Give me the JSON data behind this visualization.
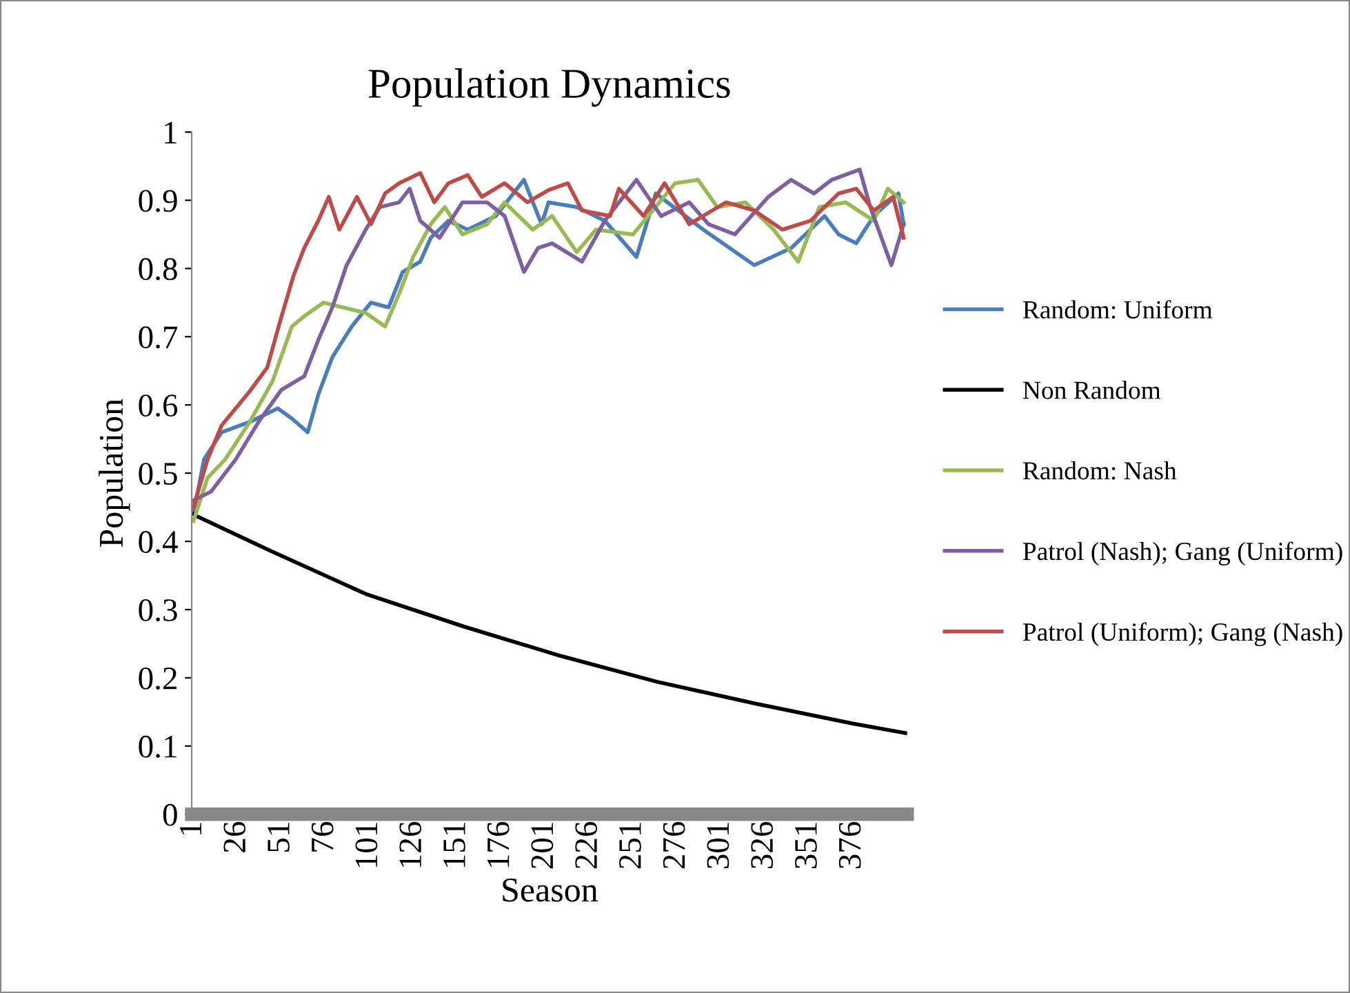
{
  "chart_data": {
    "type": "line",
    "title": "Population Dynamics",
    "xlabel": "Season",
    "ylabel": "Population",
    "xlim": [
      0,
      407
    ],
    "xticks": [
      1,
      26,
      51,
      76,
      101,
      126,
      151,
      176,
      201,
      226,
      251,
      276,
      301,
      326,
      351,
      376
    ],
    "ylim": [
      0,
      1
    ],
    "yticks": [
      0,
      0.1,
      0.2,
      0.3,
      0.4,
      0.5,
      0.6,
      0.7,
      0.8,
      0.9,
      1
    ],
    "grid": false,
    "legend": "right",
    "marker": "none",
    "line_style": "solid",
    "series": [
      {
        "name": "Random: Uniform",
        "color": "#4a7ebb",
        "x": [
          1,
          7,
          17,
          33,
          49,
          57,
          66,
          72,
          80,
          91,
          102,
          112,
          120,
          130,
          136,
          146,
          157,
          173,
          189,
          199,
          203,
          219,
          235,
          253,
          264,
          291,
          320,
          341,
          360,
          368,
          378,
          388,
          402,
          405
        ],
        "values": [
          0.44,
          0.52,
          0.56,
          0.575,
          0.595,
          0.58,
          0.56,
          0.615,
          0.67,
          0.715,
          0.75,
          0.743,
          0.795,
          0.81,
          0.845,
          0.87,
          0.857,
          0.877,
          0.93,
          0.865,
          0.897,
          0.89,
          0.87,
          0.817,
          0.91,
          0.857,
          0.805,
          0.83,
          0.877,
          0.85,
          0.837,
          0.877,
          0.91,
          0.865
        ]
      },
      {
        "name": "Non Random",
        "color": "#000000",
        "x": [
          1,
          2,
          45,
          99,
          155,
          210,
          265,
          321,
          376,
          406
        ],
        "values": [
          0.44,
          0.438,
          0.386,
          0.323,
          0.275,
          0.232,
          0.194,
          0.162,
          0.133,
          0.119
        ]
      },
      {
        "name": "Random: Nash",
        "color": "#98b954",
        "x": [
          1,
          9,
          19,
          33,
          46,
          57,
          64,
          75,
          86,
          99,
          110,
          118,
          126,
          136,
          144,
          154,
          168,
          178,
          194,
          205,
          219,
          230,
          251,
          275,
          288,
          299,
          315,
          331,
          345,
          357,
          372,
          388,
          396,
          405
        ],
        "values": [
          0.43,
          0.493,
          0.52,
          0.575,
          0.635,
          0.715,
          0.73,
          0.75,
          0.743,
          0.735,
          0.715,
          0.763,
          0.817,
          0.865,
          0.89,
          0.85,
          0.865,
          0.897,
          0.857,
          0.877,
          0.824,
          0.857,
          0.85,
          0.925,
          0.93,
          0.89,
          0.897,
          0.857,
          0.81,
          0.89,
          0.897,
          0.87,
          0.917,
          0.897
        ]
      },
      {
        "name": "Patrol (Nash); Gang (Uniform)",
        "color": "#7d60a0",
        "x": [
          1,
          11,
          25,
          38,
          51,
          64,
          72,
          80,
          88,
          99,
          107,
          118,
          124,
          130,
          141,
          154,
          168,
          178,
          189,
          197,
          205,
          222,
          235,
          253,
          267,
          283,
          294,
          309,
          328,
          341,
          354,
          364,
          380,
          386,
          398,
          405
        ],
        "values": [
          0.46,
          0.473,
          0.52,
          0.575,
          0.622,
          0.642,
          0.695,
          0.743,
          0.804,
          0.857,
          0.89,
          0.897,
          0.917,
          0.87,
          0.845,
          0.897,
          0.897,
          0.877,
          0.795,
          0.83,
          0.837,
          0.81,
          0.87,
          0.93,
          0.877,
          0.897,
          0.865,
          0.85,
          0.905,
          0.93,
          0.91,
          0.93,
          0.945,
          0.89,
          0.805,
          0.865
        ]
      },
      {
        "name": "Patrol (Uniform); Gang (Nash)",
        "color": "#be4b48",
        "x": [
          1,
          9,
          17,
          33,
          43,
          50,
          58,
          64,
          72,
          78,
          84,
          94,
          102,
          110,
          118,
          130,
          138,
          146,
          157,
          165,
          178,
          191,
          203,
          214,
          222,
          238,
          243,
          257,
          269,
          283,
          304,
          320,
          336,
          352,
          368,
          378,
          388,
          399,
          405
        ],
        "values": [
          0.45,
          0.52,
          0.57,
          0.62,
          0.655,
          0.72,
          0.79,
          0.83,
          0.87,
          0.905,
          0.857,
          0.905,
          0.865,
          0.91,
          0.925,
          0.94,
          0.897,
          0.925,
          0.937,
          0.905,
          0.925,
          0.897,
          0.915,
          0.925,
          0.885,
          0.877,
          0.917,
          0.877,
          0.925,
          0.865,
          0.897,
          0.885,
          0.857,
          0.87,
          0.91,
          0.917,
          0.885,
          0.905,
          0.845
        ]
      }
    ]
  }
}
